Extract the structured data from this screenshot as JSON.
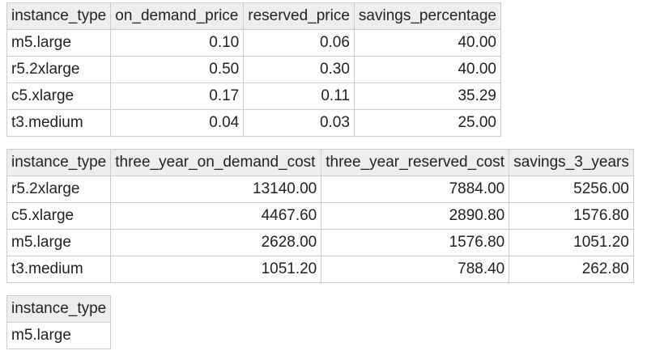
{
  "pricing_table": {
    "headers": [
      "instance_type",
      "on_demand_price",
      "reserved_price",
      "savings_percentage"
    ],
    "rows": [
      [
        "m5.large",
        "0.10",
        "0.06",
        "40.00"
      ],
      [
        "r5.2xlarge",
        "0.50",
        "0.30",
        "40.00"
      ],
      [
        "c5.xlarge",
        "0.17",
        "0.11",
        "35.29"
      ],
      [
        "t3.medium",
        "0.04",
        "0.03",
        "25.00"
      ]
    ]
  },
  "cost_table": {
    "headers": [
      "instance_type",
      "three_year_on_demand_cost",
      "three_year_reserved_cost",
      "savings_3_years"
    ],
    "rows": [
      [
        "r5.2xlarge",
        "13140.00",
        "7884.00",
        "5256.00"
      ],
      [
        "c5.xlarge",
        "4467.60",
        "2890.80",
        "1576.80"
      ],
      [
        "m5.large",
        "2628.00",
        "1576.80",
        "1051.20"
      ],
      [
        "t3.medium",
        "1051.20",
        "788.40",
        "262.80"
      ]
    ]
  },
  "best_table": {
    "headers": [
      "instance_type"
    ],
    "rows": [
      [
        "m5.large"
      ]
    ]
  }
}
